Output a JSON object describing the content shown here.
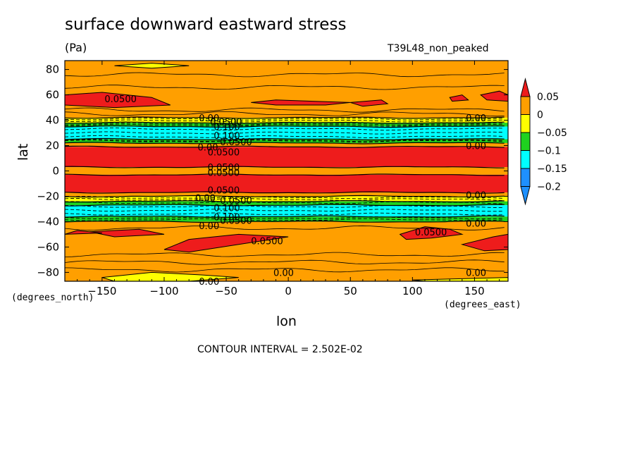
{
  "header": {
    "title": "surface downward eastward stress",
    "units": "(Pa)",
    "run_name": "T39L48_non_peaked"
  },
  "footer": {
    "contour_interval": "CONTOUR INTERVAL = 2.502E-02"
  },
  "colors": {
    "red": "#ee1c1c",
    "orange": "#ff9f00",
    "yellow": "#ffff00",
    "green": "#1fd21f",
    "cyan": "#00ffff",
    "blue": "#1e90ff"
  },
  "chart_data": {
    "type": "heatmap",
    "title": "surface downward eastward stress",
    "xlabel": "lon",
    "ylabel": "lat",
    "x_unit_label": "(degrees_east)",
    "y_unit_label": "(degrees_north)",
    "xlim": [
      -180,
      177
    ],
    "ylim": [
      -87,
      87
    ],
    "xticks": [
      -150,
      -100,
      -50,
      0,
      50,
      100,
      150
    ],
    "yticks": [
      80,
      60,
      40,
      20,
      0,
      -20,
      -40,
      -60,
      -80
    ],
    "xtick_labels": [
      "−150",
      "−100",
      "−50",
      "0",
      "50",
      "100",
      "150"
    ],
    "ytick_labels": [
      "80",
      "60",
      "40",
      "20",
      "0",
      "−20",
      "−40",
      "−60",
      "−80"
    ],
    "colorbar": {
      "levels": [
        "0.05",
        "0",
        "−0.05",
        "−0.1",
        "−0.15",
        "−0.2"
      ],
      "bins": [
        {
          "name": "above 0.05",
          "color": "#ee1c1c"
        },
        {
          "name": "0 to 0.05",
          "color": "#ff9f00"
        },
        {
          "name": "-0.05 to 0",
          "color": "#ffff00"
        },
        {
          "name": "-0.1 to -0.05",
          "color": "#1fd21f"
        },
        {
          "name": "-0.15 to -0.1",
          "color": "#00ffff"
        },
        {
          "name": "-0.2 to -0.15",
          "color": "#1e90ff"
        },
        {
          "name": "below -0.2",
          "color": "#1e90ff"
        }
      ]
    },
    "zonal_bands": [
      {
        "lat_from": 87,
        "lat_to": 42,
        "value_range": "0 to 0.05",
        "color": "#ff9f00"
      },
      {
        "lat_from": 42,
        "lat_to": 38,
        "value_range": "-0.05 to 0",
        "color": "#ffff00"
      },
      {
        "lat_from": 38,
        "lat_to": 35,
        "value_range": "-0.1 to -0.05",
        "color": "#1fd21f"
      },
      {
        "lat_from": 35,
        "lat_to": 25,
        "value_range": "-0.15 to -0.1",
        "color": "#00ffff"
      },
      {
        "lat_from": 25,
        "lat_to": 22,
        "value_range": "-0.1 to -0.05",
        "color": "#1fd21f"
      },
      {
        "lat_from": 22,
        "lat_to": 19,
        "value_range": "0 to 0.05",
        "color": "#ff9f00"
      },
      {
        "lat_from": 19,
        "lat_to": 3,
        "value_range": "above 0.05",
        "color": "#ee1c1c"
      },
      {
        "lat_from": 3,
        "lat_to": -3,
        "value_range": "0 to 0.05",
        "color": "#ff9f00"
      },
      {
        "lat_from": -3,
        "lat_to": -17,
        "value_range": "above 0.05",
        "color": "#ee1c1c"
      },
      {
        "lat_from": -17,
        "lat_to": -20,
        "value_range": "0 to 0.05",
        "color": "#ff9f00"
      },
      {
        "lat_from": -20,
        "lat_to": -24,
        "value_range": "-0.05 to 0",
        "color": "#ffff00"
      },
      {
        "lat_from": -24,
        "lat_to": -27,
        "value_range": "-0.1 to -0.05",
        "color": "#1fd21f"
      },
      {
        "lat_from": -27,
        "lat_to": -36,
        "value_range": "-0.15 to -0.1",
        "color": "#00ffff"
      },
      {
        "lat_from": -36,
        "lat_to": -40,
        "value_range": "-0.1 to -0.05",
        "color": "#1fd21f"
      },
      {
        "lat_from": -40,
        "lat_to": -87,
        "value_range": "0 to 0.05",
        "color": "#ff9f00"
      }
    ],
    "contour_labels": [
      {
        "text": "0.0500",
        "lon": -148,
        "lat": 57
      },
      {
        "text": "0.00",
        "lon": -72,
        "lat": 42
      },
      {
        "text": "0.0500",
        "lon": -63,
        "lat": 39
      },
      {
        "text": "0.100",
        "lon": -60,
        "lat": 35
      },
      {
        "text": "0.100",
        "lon": -60,
        "lat": 28
      },
      {
        "text": "0.0500",
        "lon": -55,
        "lat": 23
      },
      {
        "text": "0.00",
        "lon": -73,
        "lat": 19
      },
      {
        "text": "0.0500",
        "lon": -65,
        "lat": 15
      },
      {
        "text": "0.00",
        "lon": 143,
        "lat": 42
      },
      {
        "text": "0.00",
        "lon": 143,
        "lat": 20
      },
      {
        "text": "0.0500",
        "lon": -65,
        "lat": 3
      },
      {
        "text": "0.0500",
        "lon": -65,
        "lat": -1
      },
      {
        "text": "0.0500",
        "lon": -65,
        "lat": -15
      },
      {
        "text": "0.00",
        "lon": -75,
        "lat": -21
      },
      {
        "text": "0.0500",
        "lon": -55,
        "lat": -23
      },
      {
        "text": "0.100",
        "lon": -60,
        "lat": -29
      },
      {
        "text": "0.100",
        "lon": -60,
        "lat": -36
      },
      {
        "text": "0.0500",
        "lon": -55,
        "lat": -39
      },
      {
        "text": "0.00",
        "lon": -72,
        "lat": -43
      },
      {
        "text": "0.00",
        "lon": 143,
        "lat": -19
      },
      {
        "text": "0.00",
        "lon": 143,
        "lat": -41
      },
      {
        "text": "0.0500",
        "lon": 102,
        "lat": -48
      },
      {
        "text": "0.0500",
        "lon": -30,
        "lat": -55
      },
      {
        "text": "0.00",
        "lon": -12,
        "lat": -80
      },
      {
        "text": "0.00",
        "lon": 143,
        "lat": -80
      },
      {
        "text": "0.00",
        "lon": -72,
        "lat": -87
      }
    ]
  }
}
